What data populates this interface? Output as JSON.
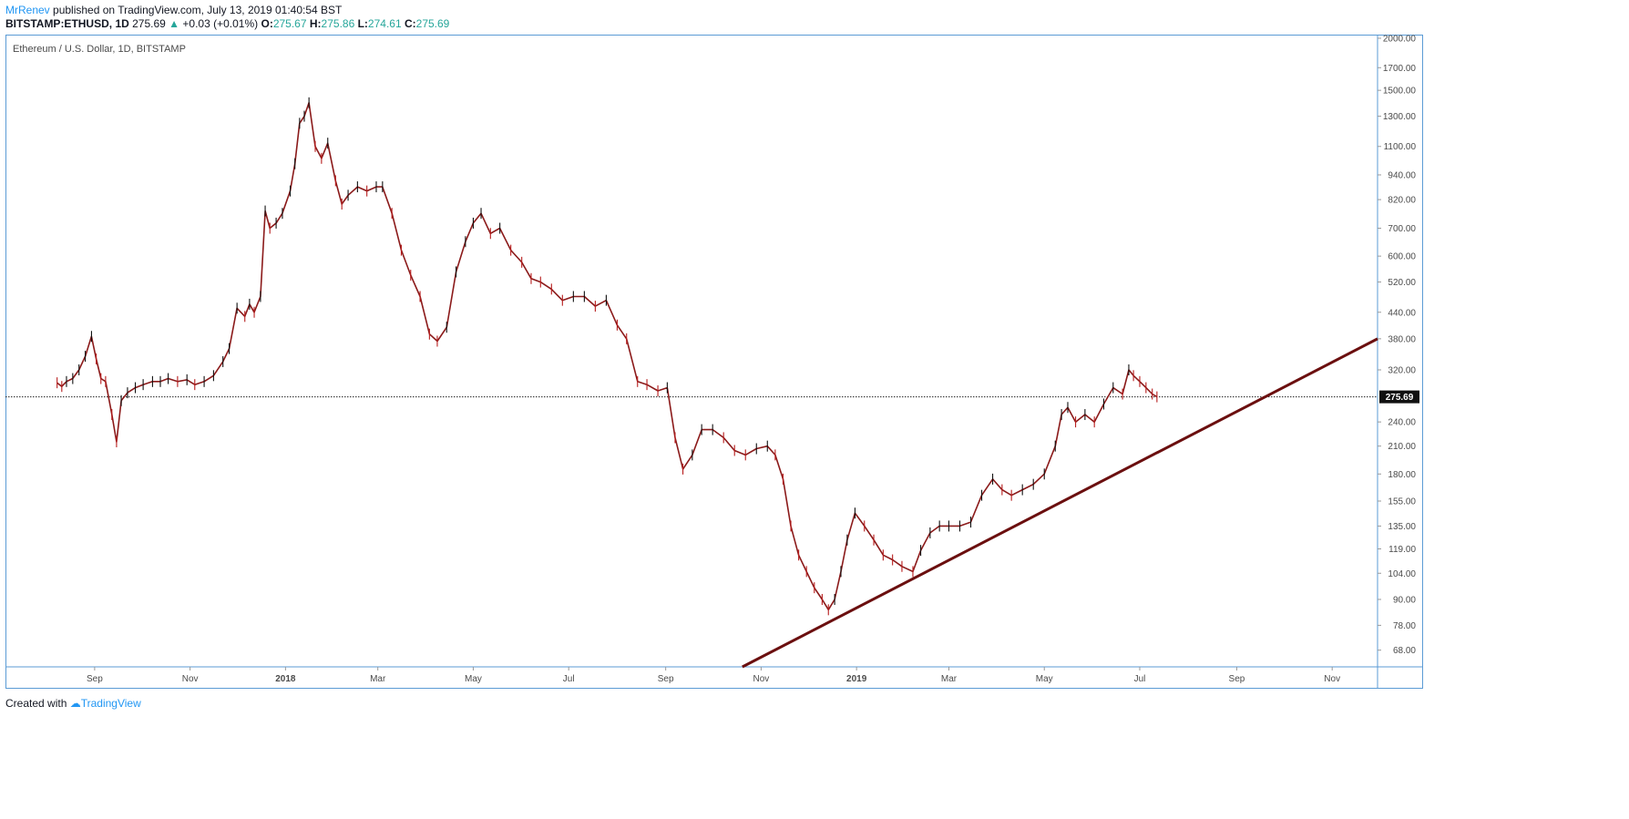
{
  "header": {
    "author": "MrRenev",
    "published_text": "published on TradingView.com, July 13, 2019 01:40:54 BST",
    "symbol": "BITSTAMP:ETHUSD, 1D",
    "last": "275.69",
    "change": "+0.03 (+0.01%)",
    "o_label": "O:",
    "o": "275.67",
    "h_label": "H:",
    "h": "275.86",
    "l_label": "L:",
    "l": "274.61",
    "c_label": "C:",
    "c": "275.69"
  },
  "footer": {
    "created_with": "Created with",
    "brand": "TradingView"
  },
  "chart_data": {
    "type": "line",
    "title": "Ethereum / U.S. Dollar, 1D, BITSTAMP",
    "y_scale": "log",
    "ylim": [
      62,
      2000
    ],
    "xlim": [
      "2017-07-06",
      "2019-11-30"
    ],
    "y_ticks": [
      "2000.00",
      "1700.00",
      "1500.00",
      "1300.00",
      "1100.00",
      "940.00",
      "820.00",
      "700.00",
      "600.00",
      "520.00",
      "440.00",
      "380.00",
      "320.00",
      "240.00",
      "210.00",
      "180.00",
      "155.00",
      "135.00",
      "119.00",
      "104.00",
      "90.00",
      "78.00",
      "68.00"
    ],
    "x_ticks": [
      {
        "label": "Sep",
        "date": "2017-09-01",
        "bold": false
      },
      {
        "label": "Nov",
        "date": "2017-11-01",
        "bold": false
      },
      {
        "label": "2018",
        "date": "2018-01-01",
        "bold": true
      },
      {
        "label": "Mar",
        "date": "2018-03-01",
        "bold": false
      },
      {
        "label": "May",
        "date": "2018-05-01",
        "bold": false
      },
      {
        "label": "Jul",
        "date": "2018-07-01",
        "bold": false
      },
      {
        "label": "Sep",
        "date": "2018-09-01",
        "bold": false
      },
      {
        "label": "Nov",
        "date": "2018-11-01",
        "bold": false
      },
      {
        "label": "2019",
        "date": "2019-01-01",
        "bold": true
      },
      {
        "label": "Mar",
        "date": "2019-03-01",
        "bold": false
      },
      {
        "label": "May",
        "date": "2019-05-01",
        "bold": false
      },
      {
        "label": "Jul",
        "date": "2019-07-01",
        "bold": false
      },
      {
        "label": "Sep",
        "date": "2019-09-01",
        "bold": false
      },
      {
        "label": "Nov",
        "date": "2019-11-01",
        "bold": false
      }
    ],
    "last_price": 275.69,
    "last_price_label": "275.69",
    "series": [
      {
        "x": [
          "2017-08-08",
          "2017-08-11",
          "2017-08-14",
          "2017-08-18",
          "2017-08-22",
          "2017-08-26",
          "2017-08-30",
          "2017-09-02",
          "2017-09-05",
          "2017-09-08",
          "2017-09-12",
          "2017-09-15",
          "2017-09-18",
          "2017-09-22",
          "2017-09-27",
          "2017-10-02",
          "2017-10-08",
          "2017-10-13",
          "2017-10-18",
          "2017-10-24",
          "2017-10-30",
          "2017-11-04",
          "2017-11-10",
          "2017-11-16",
          "2017-11-22",
          "2017-11-26",
          "2017-12-01",
          "2017-12-06",
          "2017-12-09",
          "2017-12-12",
          "2017-12-16",
          "2017-12-19",
          "2017-12-22",
          "2017-12-26",
          "2017-12-30",
          "2018-01-04",
          "2018-01-07",
          "2018-01-10",
          "2018-01-13",
          "2018-01-16",
          "2018-01-20",
          "2018-01-24",
          "2018-01-28",
          "2018-02-02",
          "2018-02-06",
          "2018-02-10",
          "2018-02-16",
          "2018-02-22",
          "2018-02-28",
          "2018-03-04",
          "2018-03-10",
          "2018-03-16",
          "2018-03-22",
          "2018-03-28",
          "2018-04-03",
          "2018-04-08",
          "2018-04-14",
          "2018-04-20",
          "2018-04-26",
          "2018-05-01",
          "2018-05-06",
          "2018-05-12",
          "2018-05-18",
          "2018-05-25",
          "2018-06-01",
          "2018-06-07",
          "2018-06-13",
          "2018-06-20",
          "2018-06-27",
          "2018-07-04",
          "2018-07-11",
          "2018-07-18",
          "2018-07-25",
          "2018-08-01",
          "2018-08-07",
          "2018-08-14",
          "2018-08-20",
          "2018-08-27",
          "2018-09-02",
          "2018-09-07",
          "2018-09-12",
          "2018-09-18",
          "2018-09-24",
          "2018-10-01",
          "2018-10-08",
          "2018-10-15",
          "2018-10-22",
          "2018-10-29",
          "2018-11-05",
          "2018-11-10",
          "2018-11-15",
          "2018-11-20",
          "2018-11-25",
          "2018-11-30",
          "2018-12-05",
          "2018-12-10",
          "2018-12-14",
          "2018-12-18",
          "2018-12-22",
          "2018-12-26",
          "2018-12-31",
          "2019-01-06",
          "2019-01-12",
          "2019-01-18",
          "2019-01-24",
          "2019-01-30",
          "2019-02-06",
          "2019-02-11",
          "2019-02-17",
          "2019-02-23",
          "2019-03-01",
          "2019-03-08",
          "2019-03-15",
          "2019-03-22",
          "2019-03-29",
          "2019-04-04",
          "2019-04-10",
          "2019-04-17",
          "2019-04-24",
          "2019-05-01",
          "2019-05-08",
          "2019-05-12",
          "2019-05-16",
          "2019-05-21",
          "2019-05-27",
          "2019-06-02",
          "2019-06-08",
          "2019-06-14",
          "2019-06-20",
          "2019-06-24",
          "2019-06-27",
          "2019-07-01",
          "2019-07-05",
          "2019-07-09",
          "2019-07-12"
        ],
        "y": [
          298,
          292,
          300,
          305,
          320,
          345,
          385,
          340,
          305,
          300,
          250,
          215,
          270,
          282,
          290,
          295,
          300,
          300,
          305,
          300,
          303,
          295,
          300,
          310,
          335,
          360,
          450,
          430,
          460,
          440,
          480,
          770,
          700,
          720,
          760,
          860,
          1000,
          1250,
          1300,
          1400,
          1100,
          1030,
          1120,
          910,
          800,
          840,
          880,
          860,
          880,
          880,
          760,
          620,
          540,
          480,
          390,
          375,
          405,
          550,
          650,
          720,
          760,
          680,
          700,
          620,
          580,
          530,
          520,
          500,
          470,
          480,
          480,
          455,
          470,
          410,
          380,
          300,
          295,
          285,
          290,
          220,
          185,
          200,
          230,
          230,
          220,
          205,
          200,
          207,
          210,
          200,
          175,
          135,
          115,
          105,
          96,
          90,
          85,
          90,
          105,
          125,
          145,
          135,
          125,
          115,
          112,
          108,
          105,
          118,
          130,
          135,
          135,
          135,
          138,
          160,
          175,
          165,
          160,
          165,
          170,
          180,
          210,
          250,
          260,
          240,
          250,
          240,
          265,
          290,
          280,
          320,
          310,
          300,
          290,
          280,
          275.69
        ],
        "color": "#8b1a1a"
      }
    ],
    "trendline": {
      "from": {
        "x": "2018-10-20",
        "y": 62
      },
      "to": {
        "x": "2019-11-30",
        "y": 380
      },
      "color": "#6b0f0f"
    }
  }
}
